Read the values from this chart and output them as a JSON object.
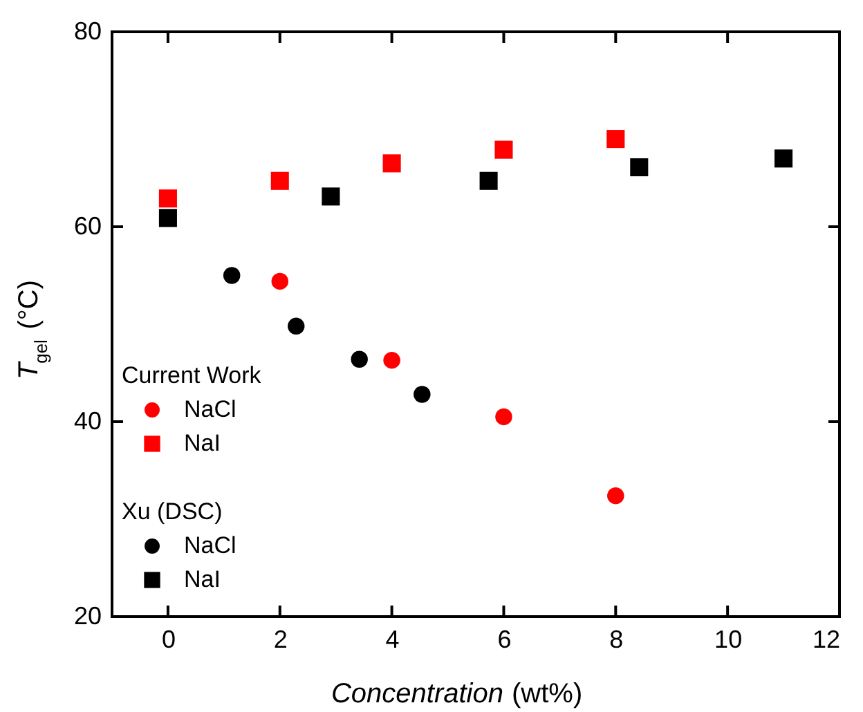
{
  "chart_data": {
    "type": "scatter",
    "xlabel": "Concentration (wt%)",
    "ylabel": "T$_{gel}$ (°C)",
    "xlim": [
      -1,
      12
    ],
    "xticks": [
      0,
      2,
      4,
      6,
      8,
      10,
      12
    ],
    "ylim": [
      20,
      80
    ],
    "yticks": [
      20,
      40,
      60,
      80
    ],
    "grid": false,
    "legend": "left",
    "annotations": [
      "Current Work",
      "Xu (DSC)"
    ],
    "series": [
      {
        "name": "NaCl",
        "color": "#ff0000",
        "marker": "circle",
        "x": [
          2,
          4,
          6,
          8
        ],
        "values": [
          54.4,
          46.3,
          40.5,
          32.4
        ]
      },
      {
        "name": "NaI",
        "color": "#ff0000",
        "marker": "square",
        "x": [
          0,
          2,
          4,
          6,
          8
        ],
        "values": [
          62.9,
          64.7,
          66.5,
          67.9,
          69.0
        ]
      },
      {
        "name": "NaCl",
        "color": "#000000",
        "marker": "circle",
        "x": [
          1.14,
          2.29,
          3.42,
          4.54
        ],
        "values": [
          55.0,
          49.8,
          46.4,
          42.8
        ]
      },
      {
        "name": "NaI",
        "color": "#000000",
        "marker": "square",
        "x": [
          0,
          2.91,
          5.73,
          8.42,
          11.0
        ],
        "values": [
          60.9,
          63.1,
          64.7,
          66.1,
          67.0
        ]
      }
    ]
  }
}
